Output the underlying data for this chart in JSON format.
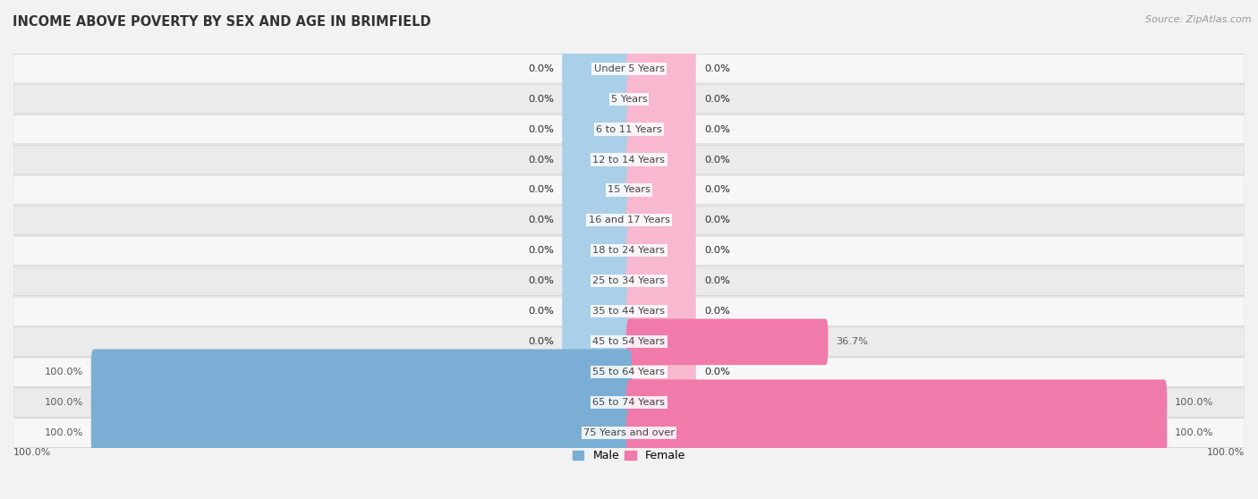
{
  "title": "INCOME ABOVE POVERTY BY SEX AND AGE IN BRIMFIELD",
  "source": "Source: ZipAtlas.com",
  "categories": [
    "Under 5 Years",
    "5 Years",
    "6 to 11 Years",
    "12 to 14 Years",
    "15 Years",
    "16 and 17 Years",
    "18 to 24 Years",
    "25 to 34 Years",
    "35 to 44 Years",
    "45 to 54 Years",
    "55 to 64 Years",
    "65 to 74 Years",
    "75 Years and over"
  ],
  "male_values": [
    0.0,
    0.0,
    0.0,
    0.0,
    0.0,
    0.0,
    0.0,
    0.0,
    0.0,
    0.0,
    100.0,
    100.0,
    100.0
  ],
  "female_values": [
    0.0,
    0.0,
    0.0,
    0.0,
    0.0,
    0.0,
    0.0,
    0.0,
    0.0,
    36.7,
    0.0,
    100.0,
    100.0
  ],
  "male_color": "#7aaed4",
  "female_color": "#f07aaa",
  "male_stub_color": "#aacfe8",
  "female_stub_color": "#f8b8d0",
  "track_color": "#e8e8e8",
  "row_light": "#f7f7f7",
  "row_dark": "#ebebeb",
  "label_color": "#444444",
  "value_color": "#555555",
  "title_color": "#333333",
  "source_color": "#999999",
  "max_value": 100.0,
  "stub_size": 12.0,
  "bar_height": 0.52,
  "legend_male": "Male",
  "legend_female": "Female",
  "bg_color": "#f2f2f2"
}
